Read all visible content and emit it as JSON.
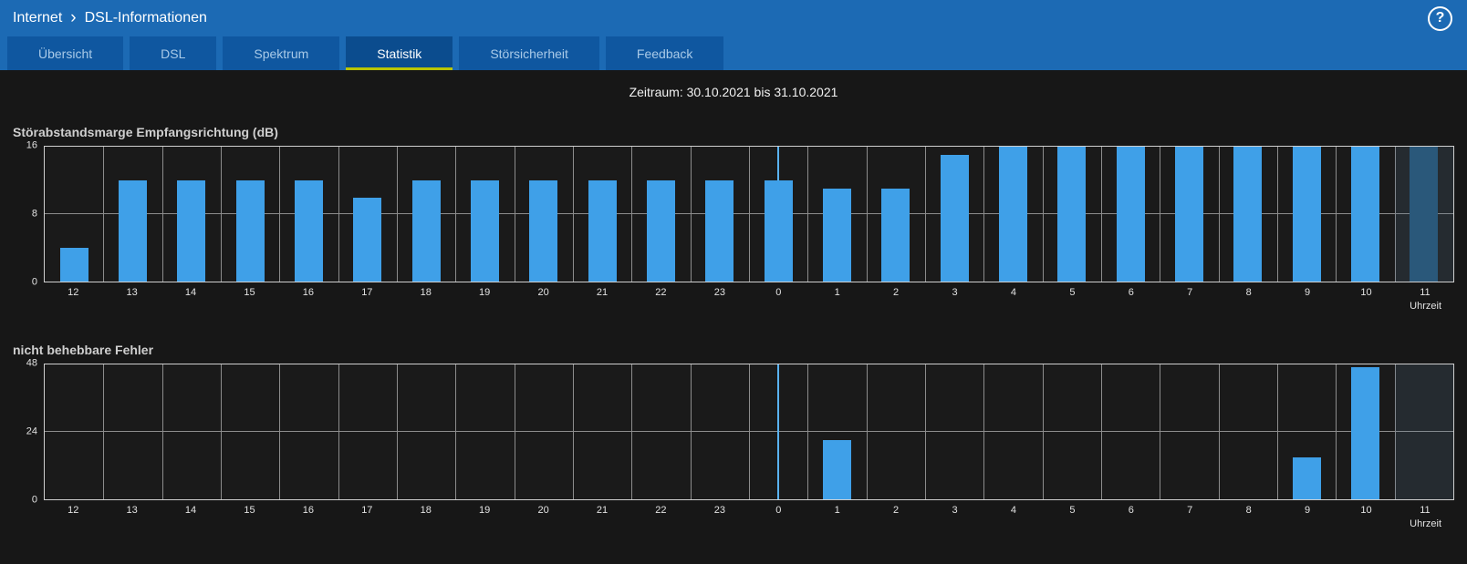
{
  "header": {
    "breadcrumb": {
      "section": "Internet",
      "separator": "›",
      "page": "DSL-Informationen"
    },
    "help_label": "?"
  },
  "tabs": [
    {
      "label": "Übersicht",
      "active": false
    },
    {
      "label": "DSL",
      "active": false
    },
    {
      "label": "Spektrum",
      "active": false
    },
    {
      "label": "Statistik",
      "active": true
    },
    {
      "label": "Störsicherheit",
      "active": false
    },
    {
      "label": "Feedback",
      "active": false
    }
  ],
  "period_label": "Zeitraum: 30.10.2021 bis 31.10.2021",
  "colors": {
    "header_blue": "#1c6ab4",
    "tab_inactive": "#0f57a0",
    "tab_active": "#0b4c8e",
    "tab_active_underline": "#b9c400",
    "bar": "#3fa0e8",
    "bar_dimmed": "#2a587a",
    "midnight_line": "#59b2f0"
  },
  "chart_data": [
    {
      "type": "bar",
      "title": "Störabstandsmarge Empfangsrichtung (dB)",
      "xlabel": "Uhrzeit",
      "categories": [
        "12",
        "13",
        "14",
        "15",
        "16",
        "17",
        "18",
        "19",
        "20",
        "21",
        "22",
        "23",
        "0",
        "1",
        "2",
        "3",
        "4",
        "5",
        "6",
        "7",
        "8",
        "9",
        "10",
        "11"
      ],
      "values": [
        4,
        12,
        12,
        12,
        12,
        10,
        12,
        12,
        12,
        12,
        12,
        12,
        12,
        11,
        11,
        15,
        16,
        16,
        16,
        16,
        16,
        16,
        16,
        16
      ],
      "ylim": [
        0,
        16
      ],
      "yticks": [
        0,
        8,
        16
      ],
      "grid": true,
      "legend": false,
      "midnight_index": 12,
      "dim_last_column": true
    },
    {
      "type": "bar",
      "title": "nicht behebbare Fehler",
      "xlabel": "Uhrzeit",
      "categories": [
        "12",
        "13",
        "14",
        "15",
        "16",
        "17",
        "18",
        "19",
        "20",
        "21",
        "22",
        "23",
        "0",
        "1",
        "2",
        "3",
        "4",
        "5",
        "6",
        "7",
        "8",
        "9",
        "10",
        "11"
      ],
      "values": [
        0,
        0,
        0,
        0,
        0,
        0,
        0,
        0,
        0,
        0,
        0,
        0,
        0,
        21,
        0,
        0,
        0,
        0,
        0,
        0,
        0,
        15,
        47,
        0
      ],
      "ylim": [
        0,
        48
      ],
      "yticks": [
        0,
        24,
        48
      ],
      "grid": true,
      "legend": false,
      "midnight_index": 12,
      "dim_last_column": true
    }
  ]
}
